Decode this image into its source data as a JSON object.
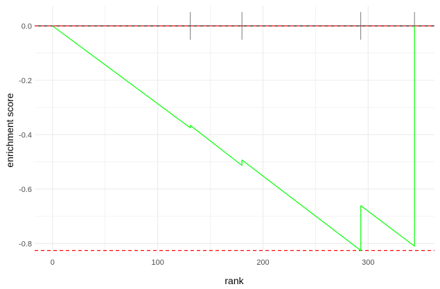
{
  "chart_data": {
    "type": "line",
    "title": "",
    "xlabel": "rank",
    "ylabel": "enrichment score",
    "xlim": [
      -17,
      363
    ],
    "ylim": [
      -0.835,
      0.075
    ],
    "x_ticks": [
      0,
      100,
      200,
      300
    ],
    "x_tick_labels": [
      "0",
      "100",
      "200",
      "300"
    ],
    "y_ticks": [
      0.0,
      -0.2,
      -0.4,
      -0.6,
      -0.8
    ],
    "y_tick_labels": [
      "0.0",
      "-0.2",
      "-0.4",
      "-0.6",
      "-0.8"
    ],
    "grid": true,
    "series": [
      {
        "color": "#00ff00",
        "x": [
          0,
          131,
          131,
          180,
          180,
          293,
          293,
          344,
          344
        ],
        "y": [
          0.0,
          -0.375,
          -0.366,
          -0.513,
          -0.493,
          -0.826,
          -0.661,
          -0.81,
          0.0
        ]
      }
    ],
    "hit_ranks": [
      131,
      180,
      293,
      344
    ],
    "hit_line_color": "#404040",
    "reference_lines": [
      {
        "y": 0.0,
        "color": "#ff0000",
        "style": "dashed"
      },
      {
        "y": -0.826,
        "color": "#ff0000",
        "style": "dashed"
      }
    ],
    "zero_line_color": "#000000",
    "background": "#ffffff",
    "grid_color": "#ebebeb"
  }
}
